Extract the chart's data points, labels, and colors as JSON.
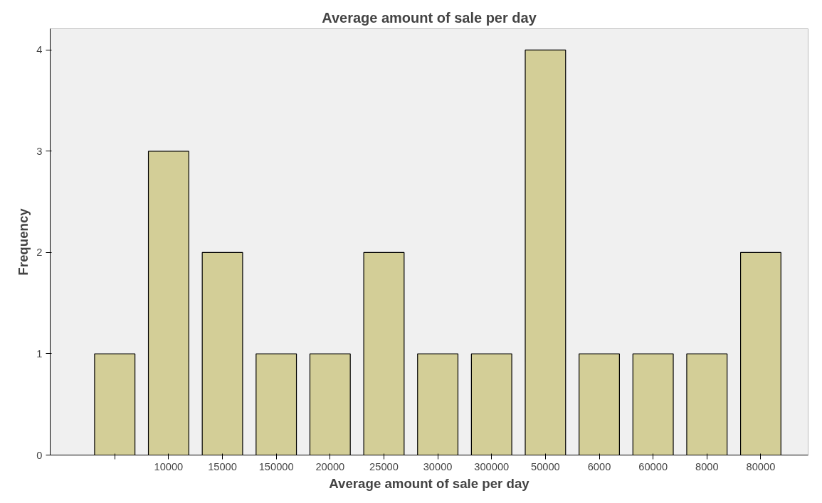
{
  "chart_data": {
    "type": "bar",
    "title": "Average amount of sale per day",
    "xlabel": "Average amount of sale per day",
    "ylabel": "Frequency",
    "categories": [
      null,
      "10000",
      "15000",
      "150000",
      "20000",
      "25000",
      "30000",
      "300000",
      "50000",
      "6000",
      "60000",
      "8000",
      "80000"
    ],
    "values": [
      1,
      3,
      2,
      1,
      1,
      2,
      1,
      1,
      4,
      1,
      1,
      1,
      2
    ],
    "color": "#d3ce97",
    "ylim": [
      0,
      4.21
    ],
    "yticks": [
      0,
      1,
      2,
      3,
      4
    ],
    "grid": false
  }
}
